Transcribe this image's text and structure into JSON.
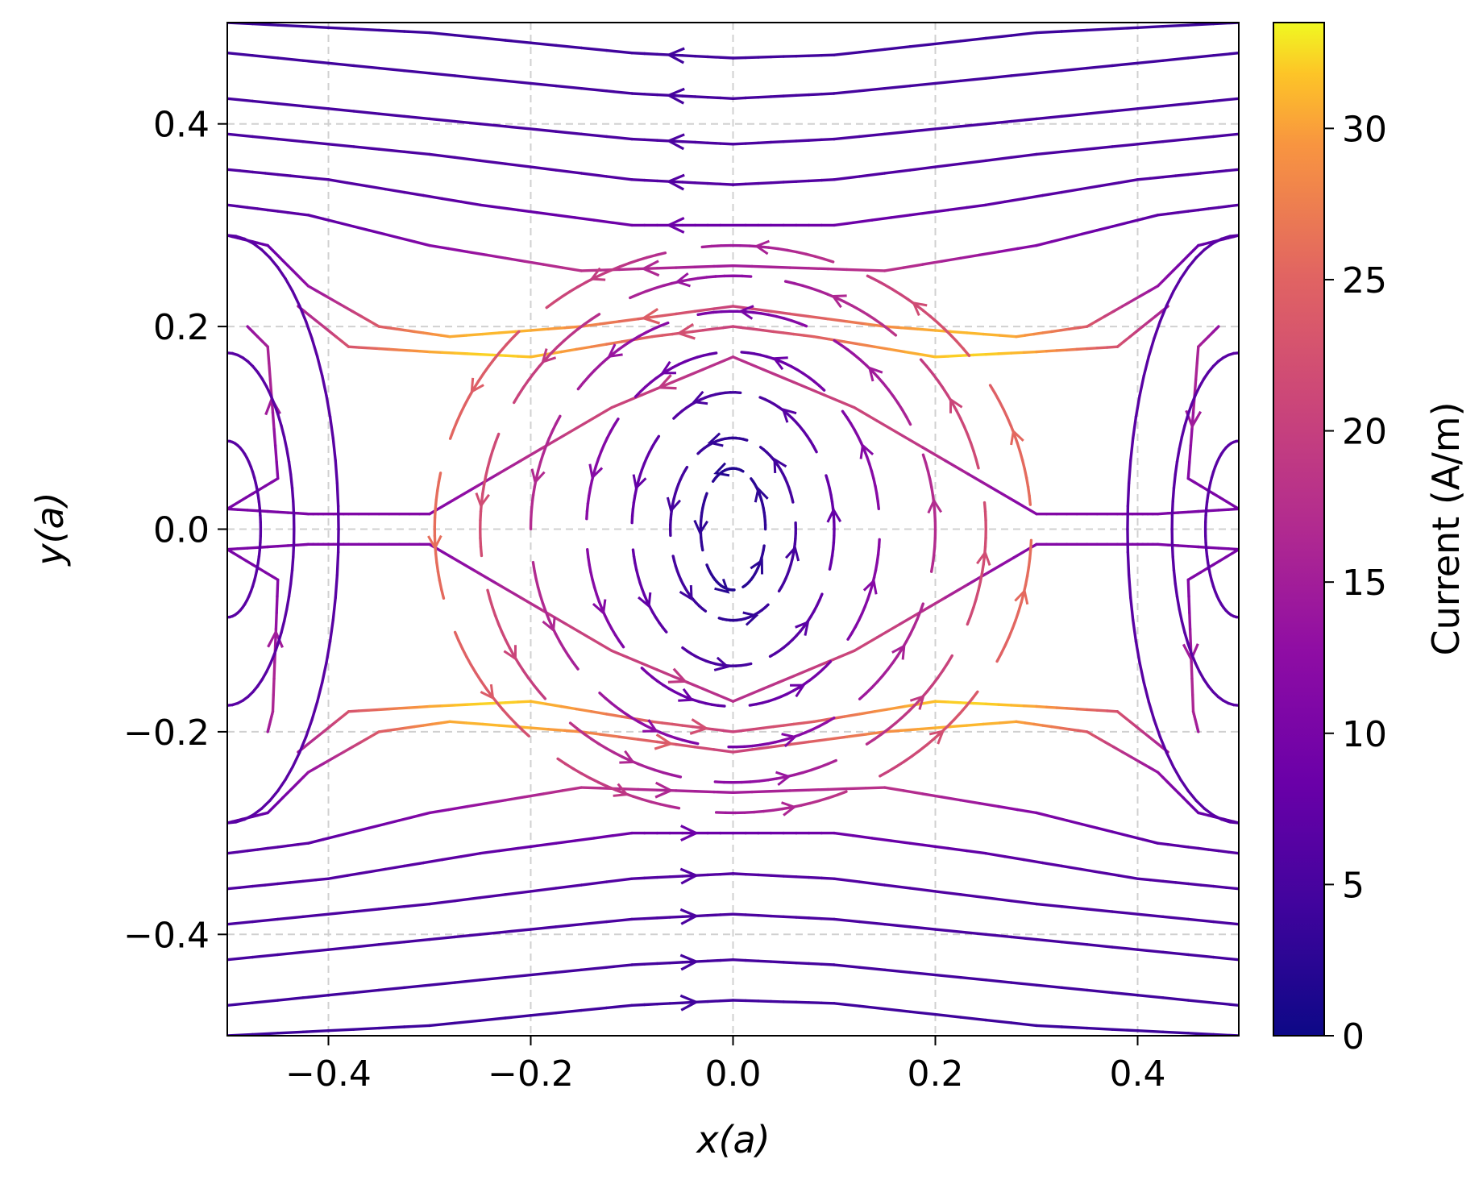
{
  "chart_data": {
    "type": "streamplot",
    "title": "",
    "xlabel": "x(a)",
    "ylabel": "y(a)",
    "xlim": [
      -0.5,
      0.5
    ],
    "ylim": [
      -0.5,
      0.5
    ],
    "xticks": [
      -0.4,
      -0.2,
      0.0,
      0.2,
      0.4
    ],
    "yticks": [
      -0.4,
      -0.2,
      0.0,
      0.2,
      0.4
    ],
    "xtick_labels": [
      "−0.4",
      "−0.2",
      "0.0",
      "0.2",
      "0.4"
    ],
    "ytick_labels": [
      "−0.4",
      "−0.2",
      "0.0",
      "0.2",
      "0.4"
    ],
    "grid": true,
    "field_description": "Current density streamlines around a central vortex with flow leftward in the upper half and rightward in the lower half",
    "colorbar": {
      "label": "Current  (A/m)",
      "colormap": "plasma",
      "range": [
        0,
        33.5
      ],
      "ticks": [
        0,
        5,
        10,
        15,
        20,
        25,
        30
      ],
      "tick_labels": [
        "0",
        "5",
        "10",
        "15",
        "20",
        "25",
        "30"
      ]
    },
    "vortices": [
      {
        "x": 0.0,
        "y": 0.0,
        "rotation": "counterclockwise"
      },
      {
        "x": -0.5,
        "y": 0.0,
        "rotation": "clockwise"
      },
      {
        "x": 0.5,
        "y": 0.0,
        "rotation": "clockwise"
      }
    ],
    "saddle_points": [
      {
        "x": -0.37,
        "y": 0.0
      },
      {
        "x": 0.37,
        "y": 0.0
      }
    ],
    "streamlines": [
      {
        "points": [
          [
            -0.5,
            0.5
          ],
          [
            -0.3,
            0.49
          ],
          [
            -0.1,
            0.47
          ],
          [
            0.0,
            0.465
          ],
          [
            0.1,
            0.468
          ],
          [
            0.3,
            0.49
          ],
          [
            0.5,
            0.5
          ]
        ],
        "direction": "left"
      },
      {
        "points": [
          [
            -0.5,
            0.47
          ],
          [
            -0.3,
            0.45
          ],
          [
            -0.1,
            0.43
          ],
          [
            0.0,
            0.425
          ],
          [
            0.1,
            0.43
          ],
          [
            0.3,
            0.45
          ],
          [
            0.5,
            0.47
          ]
        ],
        "direction": "left"
      },
      {
        "points": [
          [
            -0.5,
            0.425
          ],
          [
            -0.3,
            0.405
          ],
          [
            -0.1,
            0.385
          ],
          [
            0.0,
            0.38
          ],
          [
            0.1,
            0.385
          ],
          [
            0.3,
            0.405
          ],
          [
            0.5,
            0.425
          ]
        ],
        "direction": "left"
      },
      {
        "points": [
          [
            -0.5,
            0.39
          ],
          [
            -0.3,
            0.37
          ],
          [
            -0.1,
            0.345
          ],
          [
            0.0,
            0.34
          ],
          [
            0.1,
            0.345
          ],
          [
            0.3,
            0.37
          ],
          [
            0.5,
            0.39
          ]
        ],
        "direction": "left"
      },
      {
        "points": [
          [
            -0.5,
            0.355
          ],
          [
            -0.4,
            0.345
          ],
          [
            -0.25,
            0.32
          ],
          [
            -0.1,
            0.3
          ],
          [
            0.0,
            0.3
          ],
          [
            0.1,
            0.3
          ],
          [
            0.25,
            0.32
          ],
          [
            0.4,
            0.345
          ],
          [
            0.5,
            0.355
          ]
        ],
        "direction": "left"
      },
      {
        "points": [
          [
            -0.5,
            0.32
          ],
          [
            -0.42,
            0.31
          ],
          [
            -0.3,
            0.28
          ],
          [
            -0.15,
            0.255
          ],
          [
            0.0,
            0.26
          ],
          [
            0.15,
            0.255
          ],
          [
            0.3,
            0.28
          ],
          [
            0.42,
            0.31
          ],
          [
            0.5,
            0.32
          ]
        ],
        "direction": "left"
      },
      {
        "points": [
          [
            -0.5,
            0.29
          ],
          [
            -0.46,
            0.28
          ],
          [
            -0.42,
            0.24
          ],
          [
            -0.35,
            0.2
          ],
          [
            -0.28,
            0.19
          ],
          [
            -0.15,
            0.2
          ],
          [
            0.0,
            0.22
          ],
          [
            0.15,
            0.2
          ],
          [
            0.28,
            0.19
          ],
          [
            0.35,
            0.2
          ],
          [
            0.42,
            0.24
          ],
          [
            0.46,
            0.28
          ],
          [
            0.5,
            0.29
          ]
        ],
        "direction": "left"
      },
      {
        "points": [
          [
            -0.43,
            0.22
          ],
          [
            -0.38,
            0.18
          ],
          [
            -0.3,
            0.175
          ],
          [
            -0.2,
            0.17
          ],
          [
            -0.08,
            0.19
          ],
          [
            0.0,
            0.2
          ],
          [
            0.08,
            0.19
          ],
          [
            0.2,
            0.17
          ],
          [
            0.3,
            0.175
          ],
          [
            0.38,
            0.18
          ],
          [
            0.43,
            0.22
          ]
        ],
        "direction": "left"
      },
      {
        "points": [
          [
            -0.48,
            0.2
          ],
          [
            -0.46,
            0.18
          ],
          [
            -0.45,
            0.05
          ],
          [
            -0.5,
            0.02
          ]
        ],
        "direction": "left"
      },
      {
        "points": [
          [
            0.48,
            0.2
          ],
          [
            0.46,
            0.18
          ],
          [
            0.45,
            0.05
          ],
          [
            0.5,
            0.02
          ]
        ],
        "direction": "down"
      },
      {
        "points": [
          [
            -0.46,
            -0.2
          ],
          [
            -0.455,
            -0.18
          ],
          [
            -0.45,
            -0.05
          ],
          [
            -0.5,
            -0.02
          ]
        ],
        "direction": "up"
      },
      {
        "points": [
          [
            0.46,
            -0.2
          ],
          [
            0.455,
            -0.18
          ],
          [
            0.45,
            -0.05
          ],
          [
            0.5,
            -0.02
          ]
        ],
        "direction": "down"
      },
      {
        "points": [
          [
            -0.5,
            -0.5
          ],
          [
            -0.3,
            -0.49
          ],
          [
            -0.1,
            -0.47
          ],
          [
            0.0,
            -0.465
          ],
          [
            0.1,
            -0.468
          ],
          [
            0.3,
            -0.49
          ],
          [
            0.5,
            -0.5
          ]
        ],
        "direction": "right"
      },
      {
        "points": [
          [
            -0.5,
            -0.47
          ],
          [
            -0.3,
            -0.45
          ],
          [
            -0.1,
            -0.43
          ],
          [
            0.0,
            -0.425
          ],
          [
            0.1,
            -0.43
          ],
          [
            0.3,
            -0.45
          ],
          [
            0.5,
            -0.47
          ]
        ],
        "direction": "right"
      },
      {
        "points": [
          [
            -0.5,
            -0.425
          ],
          [
            -0.3,
            -0.405
          ],
          [
            -0.1,
            -0.385
          ],
          [
            0.0,
            -0.38
          ],
          [
            0.1,
            -0.385
          ],
          [
            0.3,
            -0.405
          ],
          [
            0.5,
            -0.425
          ]
        ],
        "direction": "right"
      },
      {
        "points": [
          [
            -0.5,
            -0.39
          ],
          [
            -0.3,
            -0.37
          ],
          [
            -0.1,
            -0.345
          ],
          [
            0.0,
            -0.34
          ],
          [
            0.1,
            -0.345
          ],
          [
            0.3,
            -0.37
          ],
          [
            0.5,
            -0.39
          ]
        ],
        "direction": "right"
      },
      {
        "points": [
          [
            -0.5,
            -0.355
          ],
          [
            -0.4,
            -0.345
          ],
          [
            -0.25,
            -0.32
          ],
          [
            -0.1,
            -0.3
          ],
          [
            0.0,
            -0.3
          ],
          [
            0.1,
            -0.3
          ],
          [
            0.25,
            -0.32
          ],
          [
            0.4,
            -0.345
          ],
          [
            0.5,
            -0.355
          ]
        ],
        "direction": "right"
      },
      {
        "points": [
          [
            -0.5,
            -0.32
          ],
          [
            -0.42,
            -0.31
          ],
          [
            -0.3,
            -0.28
          ],
          [
            -0.15,
            -0.255
          ],
          [
            0.0,
            -0.26
          ],
          [
            0.15,
            -0.255
          ],
          [
            0.3,
            -0.28
          ],
          [
            0.42,
            -0.31
          ],
          [
            0.5,
            -0.32
          ]
        ],
        "direction": "right"
      },
      {
        "points": [
          [
            -0.5,
            -0.29
          ],
          [
            -0.46,
            -0.28
          ],
          [
            -0.42,
            -0.24
          ],
          [
            -0.35,
            -0.2
          ],
          [
            -0.28,
            -0.19
          ],
          [
            -0.15,
            -0.2
          ],
          [
            0.0,
            -0.22
          ],
          [
            0.15,
            -0.2
          ],
          [
            0.28,
            -0.19
          ],
          [
            0.35,
            -0.2
          ],
          [
            0.42,
            -0.24
          ],
          [
            0.46,
            -0.28
          ],
          [
            0.5,
            -0.29
          ]
        ],
        "direction": "right"
      },
      {
        "points": [
          [
            -0.43,
            -0.22
          ],
          [
            -0.38,
            -0.18
          ],
          [
            -0.3,
            -0.175
          ],
          [
            -0.2,
            -0.17
          ],
          [
            -0.08,
            -0.19
          ],
          [
            0.0,
            -0.2
          ],
          [
            0.08,
            -0.19
          ],
          [
            0.2,
            -0.17
          ],
          [
            0.3,
            -0.175
          ],
          [
            0.38,
            -0.18
          ],
          [
            0.43,
            -0.22
          ]
        ],
        "direction": "right"
      },
      {
        "points": [
          [
            -0.5,
            0.02
          ],
          [
            -0.42,
            0.015
          ],
          [
            -0.38,
            0.015
          ],
          [
            -0.3,
            0.015
          ],
          [
            -0.12,
            0.12
          ],
          [
            0.0,
            0.17
          ],
          [
            0.12,
            0.12
          ],
          [
            0.3,
            0.015
          ],
          [
            0.38,
            0.015
          ],
          [
            0.42,
            0.015
          ],
          [
            0.5,
            0.02
          ]
        ],
        "direction": "left"
      },
      {
        "points": [
          [
            -0.5,
            -0.02
          ],
          [
            -0.42,
            -0.015
          ],
          [
            -0.38,
            -0.015
          ],
          [
            -0.3,
            -0.015
          ],
          [
            -0.12,
            -0.12
          ],
          [
            0.0,
            -0.17
          ],
          [
            0.12,
            -0.12
          ],
          [
            0.3,
            -0.015
          ],
          [
            0.38,
            -0.015
          ],
          [
            0.42,
            -0.015
          ],
          [
            0.5,
            -0.02
          ]
        ],
        "direction": "right"
      }
    ],
    "vortex_rings": [
      {
        "rx": 0.032,
        "ry": 0.06,
        "peak_current": 3
      },
      {
        "rx": 0.062,
        "ry": 0.09,
        "peak_current": 5
      },
      {
        "rx": 0.1,
        "ry": 0.135,
        "peak_current": 8
      },
      {
        "rx": 0.145,
        "ry": 0.175,
        "peak_current": 12
      },
      {
        "rx": 0.2,
        "ry": 0.215,
        "peak_current": 17
      },
      {
        "rx": 0.25,
        "ry": 0.25,
        "peak_current": 22
      },
      {
        "rx": 0.295,
        "ry": 0.28,
        "peak_current": 26
      }
    ]
  }
}
